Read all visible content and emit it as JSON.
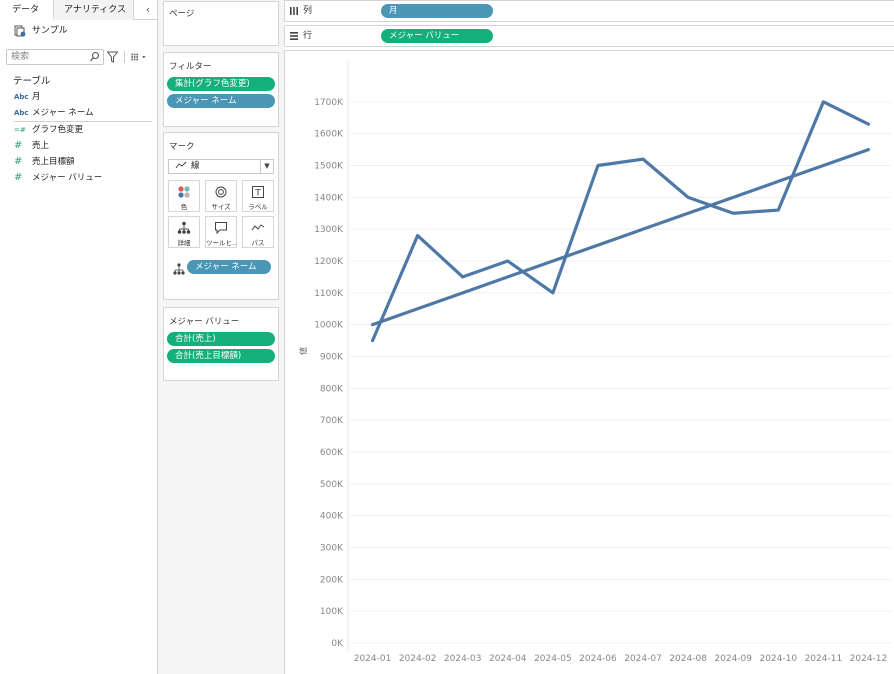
{
  "datapane": {
    "tabs": [
      {
        "label": "データ"
      },
      {
        "label": "アナリティクス"
      }
    ],
    "datasource": "サンプル",
    "search_placeholder": "検索",
    "section_title": "テーブル",
    "fields": [
      {
        "type": "Abc",
        "name": "月"
      },
      {
        "type": "Abc",
        "name": "メジャー ネーム"
      },
      {
        "type": "=#",
        "name": "グラフ色変更"
      },
      {
        "type": "#",
        "name": "売上"
      },
      {
        "type": "#",
        "name": "売上目標額"
      },
      {
        "type": "#",
        "name": "メジャー バリュー"
      }
    ]
  },
  "cards": {
    "pages": {
      "title": "ページ"
    },
    "filters": {
      "title": "フィルター",
      "pills": [
        "集計(グラフ色変更)",
        "メジャー ネーム"
      ]
    },
    "marks": {
      "title": "マーク",
      "type": "線",
      "buttons": [
        "色",
        "サイズ",
        "ラベル",
        "詳細",
        "ツールヒ…",
        "パス"
      ],
      "detail_pill": "メジャー ネーム"
    },
    "measure_values": {
      "title": "メジャー バリュー",
      "pills": [
        "合計(売上)",
        "合計(売上目標額)"
      ]
    }
  },
  "shelves": {
    "columns": {
      "label": "列",
      "pill": "月"
    },
    "rows": {
      "label": "行",
      "pill": "メジャー バリュー"
    }
  },
  "colors": {
    "line": "#4e79a7",
    "pill_green": "#14b07c",
    "pill_blue": "#4a96b4"
  },
  "chart_data": {
    "type": "line",
    "ylabel": "値",
    "ylim": [
      0,
      1700000
    ],
    "yticks": [
      0,
      100000,
      200000,
      300000,
      400000,
      500000,
      600000,
      700000,
      800000,
      900000,
      1000000,
      1100000,
      1200000,
      1300000,
      1400000,
      1500000,
      1600000,
      1700000
    ],
    "ytick_labels": [
      "0K",
      "100K",
      "200K",
      "300K",
      "400K",
      "500K",
      "600K",
      "700K",
      "800K",
      "900K",
      "1000K",
      "1100K",
      "1200K",
      "1300K",
      "1400K",
      "1500K",
      "1600K",
      "1700K"
    ],
    "categories": [
      "2024-01",
      "2024-02",
      "2024-03",
      "2024-04",
      "2024-05",
      "2024-06",
      "2024-07",
      "2024-08",
      "2024-09",
      "2024-10",
      "2024-11",
      "2024-12"
    ],
    "series": [
      {
        "values": [
          950000,
          1280000,
          1150000,
          1200000,
          1100000,
          1500000,
          1520000,
          1400000,
          1350000,
          1360000,
          1700000,
          1630000
        ]
      },
      {
        "values": [
          1000000,
          1050000,
          1100000,
          1150000,
          1200000,
          1250000,
          1300000,
          1350000,
          1400000,
          1450000,
          1500000,
          1550000
        ]
      }
    ],
    "grid": true
  }
}
